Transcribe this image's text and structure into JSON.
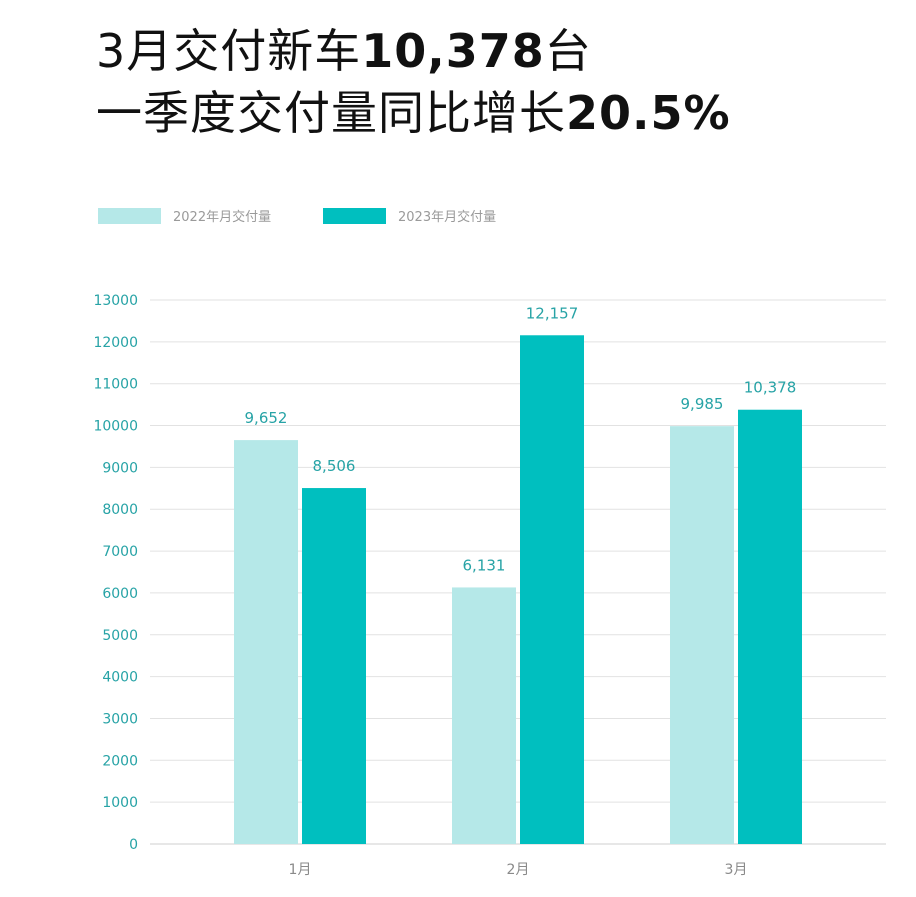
{
  "headline": {
    "line1_prefix": "3月交付新车",
    "line1_value": "10,378",
    "line1_suffix": "台",
    "line2_prefix": "一季度交付量同比增长",
    "line2_value": "20.5%"
  },
  "chart_data": {
    "type": "bar",
    "categories": [
      "1月",
      "2月",
      "3月"
    ],
    "series": [
      {
        "name": "2022年月交付量",
        "values": [
          9652,
          6131,
          9985
        ],
        "labels": [
          "9,652",
          "6,131",
          "9,985"
        ],
        "color": "#b5e8e8"
      },
      {
        "name": "2023年月交付量",
        "values": [
          8506,
          12157,
          10378
        ],
        "labels": [
          "8,506",
          "12,157",
          "10,378"
        ],
        "color": "#00bfbf"
      }
    ],
    "ylim": [
      0,
      13000
    ],
    "yticks": [
      0,
      1000,
      2000,
      3000,
      4000,
      5000,
      6000,
      7000,
      8000,
      9000,
      10000,
      11000,
      12000,
      13000
    ],
    "grid": true,
    "legend_position": "top-left"
  }
}
